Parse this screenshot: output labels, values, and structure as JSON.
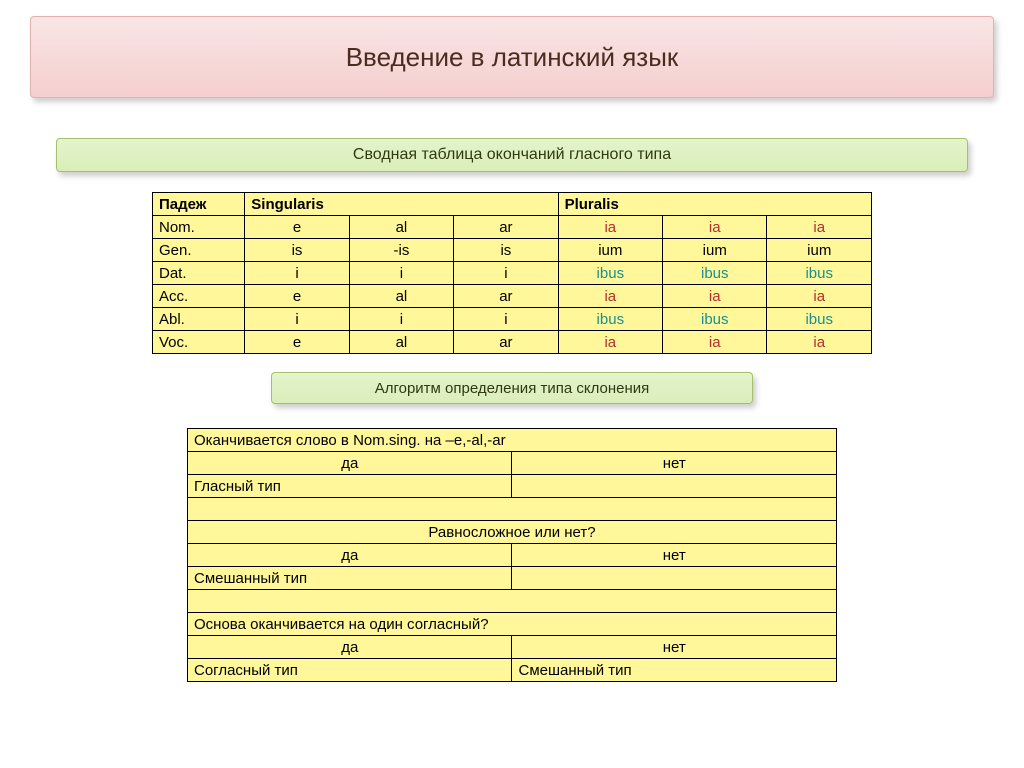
{
  "colors": {
    "banner_bg_top": "#f9e6e6",
    "banner_bg_bottom": "#f5cfcf",
    "banner_border": "#e4b0b0",
    "sub_bg_top": "#e4f4cc",
    "sub_bg_bottom": "#daeeb9",
    "sub_border": "#a6c06a",
    "table_bg": "#fff799",
    "table_border": "#000000",
    "sing_value_color": "#000000",
    "plur_red": "#b03030",
    "plur_teal": "#1a8f8f"
  },
  "title": "Введение в латинский язык",
  "subtitle": "Сводная таблица окончаний гласного типа",
  "algo_title": "Алгоритм определения типа склонения",
  "table1": {
    "head": {
      "case": "Падеж",
      "sing": "Singularis",
      "plur": "Pluralis"
    },
    "rows": [
      {
        "label": "Nom.",
        "sing": [
          "e",
          "al",
          "ar"
        ],
        "plur": [
          "ia",
          "ia",
          "ia"
        ],
        "pcolor": "red"
      },
      {
        "label": "Gen.",
        "sing": [
          "is",
          "-is",
          "is"
        ],
        "plur": [
          "ium",
          "ium",
          "ium"
        ],
        "pcolor": "black"
      },
      {
        "label": "Dat.",
        "sing": [
          "i",
          "i",
          "i"
        ],
        "plur": [
          "ibus",
          "ibus",
          "ibus"
        ],
        "pcolor": "teal"
      },
      {
        "label": "Acc.",
        "sing": [
          "e",
          "al",
          "ar"
        ],
        "plur": [
          "ia",
          "ia",
          "ia"
        ],
        "pcolor": "red"
      },
      {
        "label": "Abl.",
        "sing": [
          "i",
          "i",
          "i"
        ],
        "plur": [
          "ibus",
          "ibus",
          "ibus"
        ],
        "pcolor": "teal"
      },
      {
        "label": "Voc.",
        "sing": [
          "e",
          "al",
          "ar"
        ],
        "plur": [
          "ia",
          "ia",
          "ia"
        ],
        "pcolor": "red"
      }
    ]
  },
  "table2": {
    "q1": "Оканчивается слово в Nom.sing. на –e,-al,-ar",
    "yes": "да",
    "no": "нет",
    "a1_left": "Гласный тип",
    "q2": "Равносложное или нет?",
    "a2_left": "Смешанный тип",
    "q3": "Основа оканчивается на один согласный?",
    "a3_left": "Согласный тип",
    "a3_right": "Смешанный тип"
  }
}
